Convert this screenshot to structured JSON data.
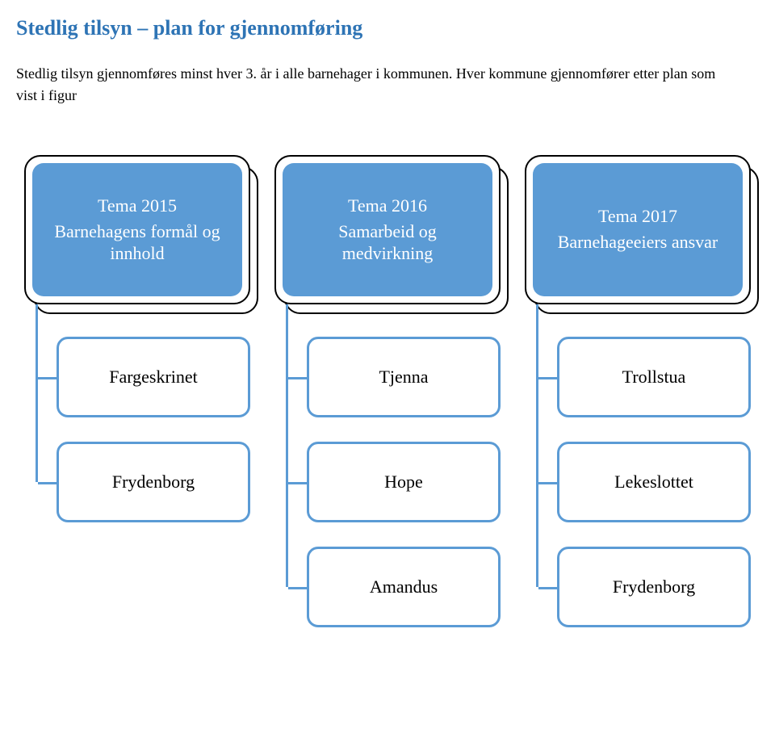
{
  "title_color": "#2e74b5",
  "text_color": "#000000",
  "title": "Stedlig tilsyn – plan for gjennomføring",
  "intro": "Stedlig tilsyn gjennomføres minst hver 3. år i alle barnehager i kommunen. Hver kommune gjennomfører etter plan som vist i figur",
  "columns": [
    {
      "theme_title": "Tema 2015",
      "theme_subtitle": "Barnehagens formål og innhold",
      "theme_bg": "#5b9bd5",
      "child_border": "#5b9bd5",
      "connector": "#5b9bd5",
      "children": [
        "Fargeskrinet",
        "Frydenborg"
      ]
    },
    {
      "theme_title": "Tema 2016",
      "theme_subtitle": "Samarbeid og medvirkning",
      "theme_bg": "#5b9bd5",
      "child_border": "#5b9bd5",
      "connector": "#5b9bd5",
      "children": [
        "Tjenna",
        "Hope",
        "Amandus"
      ]
    },
    {
      "theme_title": "Tema 2017",
      "theme_subtitle": "Barnehageeiers ansvar",
      "theme_bg": "#5b9bd5",
      "child_border": "#5b9bd5",
      "connector": "#5b9bd5",
      "children": [
        "Trollstua",
        "Lekeslottet",
        "Frydenborg"
      ]
    }
  ]
}
